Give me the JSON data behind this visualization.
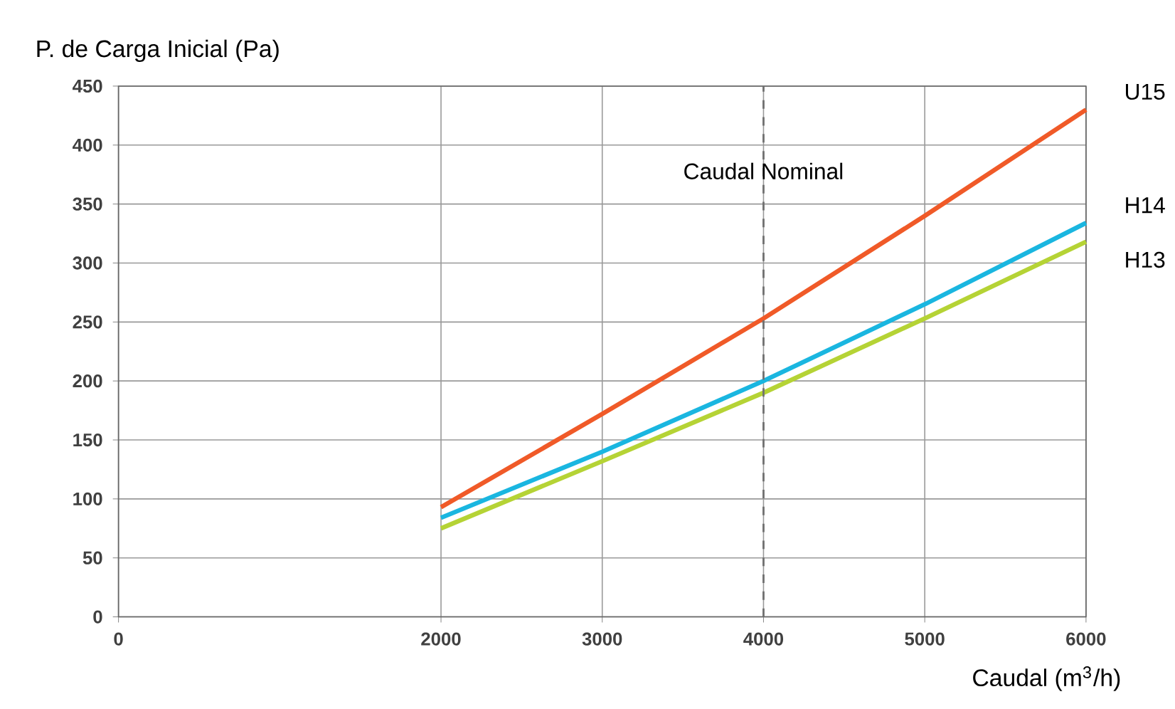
{
  "chart_data": {
    "type": "line",
    "xlabel": "Caudal (m$^{3}$/h)",
    "ylabel": "P. de Carga Inicial (Pa)",
    "x": [
      2000,
      3000,
      4000,
      5000,
      6000
    ],
    "series": [
      {
        "name": "U15",
        "color": "#f05a28",
        "values": [
          93,
          172,
          253,
          340,
          430
        ]
      },
      {
        "name": "H14",
        "color": "#1ab6e0",
        "values": [
          84,
          140,
          200,
          265,
          334
        ]
      },
      {
        "name": "H13",
        "color": "#b5d335",
        "values": [
          75,
          132,
          190,
          253,
          318
        ]
      }
    ],
    "xlim": [
      0,
      6000
    ],
    "xticks": [
      0,
      2000,
      3000,
      4000,
      5000,
      6000
    ],
    "ylim": [
      0,
      450
    ],
    "yticks": [
      0,
      50,
      100,
      150,
      200,
      250,
      300,
      350,
      400,
      450
    ],
    "grid": true,
    "marker": "none",
    "line_style": "solid",
    "ref_lines": [
      {
        "axis": "x",
        "value": 4000,
        "label": "Caudal Nominal",
        "color": "#707070",
        "line_style": "dashed"
      }
    ]
  }
}
